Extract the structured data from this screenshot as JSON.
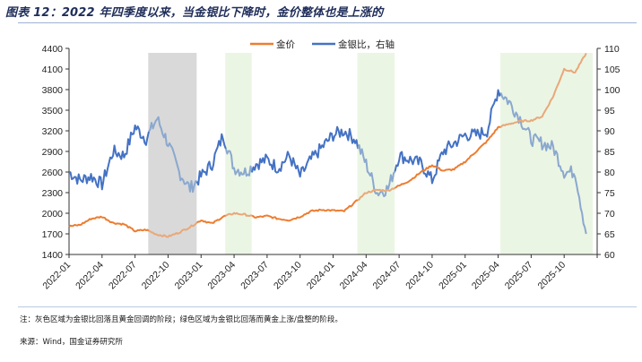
{
  "header": {
    "title": "图表 12：2022 年四季度以来，当金银比下降时，金价整体也是上涨的"
  },
  "footer": {
    "note": "注：灰色区域为金银比回落且黄金回调的阶段；绿色区域为金银比回落而黄金上涨/盘整的阶段。",
    "source": "来源：Wind，国金证券研究所"
  },
  "colors": {
    "gold": "#ed7d31",
    "gold_faded": "#e9a878",
    "ratio": "#4472c4",
    "ratio_faded": "#8aa8cf",
    "gray_band": "#d9d9d9",
    "green_band": "#ebf5e4"
  },
  "chart_data": {
    "type": "line",
    "title": "图表 12：2022 年四季度以来，当金银比下降时，金价整体也是上涨的",
    "xlabel": "",
    "ylabel": "",
    "y2label": "",
    "ylim": [
      1400,
      4400
    ],
    "y2lim": [
      60,
      110
    ],
    "yticks": [
      1400,
      1700,
      2000,
      2300,
      2600,
      2900,
      3200,
      3500,
      3800,
      4100,
      4400
    ],
    "y2ticks": [
      60,
      65,
      70,
      75,
      80,
      85,
      90,
      95,
      100,
      105,
      110
    ],
    "x_tick_labels": [
      "2022-01",
      "2022-04",
      "2022-07",
      "2022-10",
      "2023-01",
      "2023-04",
      "2023-07",
      "2023-10",
      "2024-01",
      "2024-04",
      "2024-07",
      "2024-10",
      "2025-01",
      "2025-04",
      "2025-07",
      "2025-10"
    ],
    "legend": [
      {
        "name": "金价",
        "axis": "left"
      },
      {
        "name": "金银比，右轴",
        "axis": "right"
      }
    ],
    "legend_position": "top",
    "grid": false,
    "shaded_regions": [
      {
        "color": "gray",
        "start": "2022-08",
        "end": "2022-12"
      },
      {
        "color": "green",
        "start": "2023-03",
        "end": "2023-05"
      },
      {
        "color": "green",
        "start": "2024-03",
        "end": "2024-06"
      },
      {
        "color": "green",
        "start": "2025-04",
        "end": "2025-12"
      }
    ],
    "x": [
      "2022-01",
      "2022-02",
      "2022-03",
      "2022-04",
      "2022-05",
      "2022-06",
      "2022-07",
      "2022-08",
      "2022-09",
      "2022-10",
      "2022-11",
      "2022-12",
      "2023-01",
      "2023-02",
      "2023-03",
      "2023-04",
      "2023-05",
      "2023-06",
      "2023-07",
      "2023-08",
      "2023-09",
      "2023-10",
      "2023-11",
      "2023-12",
      "2024-01",
      "2024-02",
      "2024-03",
      "2024-04",
      "2024-05",
      "2024-06",
      "2024-07",
      "2024-08",
      "2024-09",
      "2024-10",
      "2024-11",
      "2024-12",
      "2025-01",
      "2025-02",
      "2025-03",
      "2025-04",
      "2025-05",
      "2025-06",
      "2025-07",
      "2025-08",
      "2025-09",
      "2025-10",
      "2025-11",
      "2025-12"
    ],
    "series": [
      {
        "name": "金价",
        "axis": "left",
        "values": [
          1810,
          1830,
          1920,
          1950,
          1860,
          1840,
          1740,
          1760,
          1690,
          1660,
          1720,
          1800,
          1900,
          1850,
          1950,
          2000,
          1980,
          1940,
          1960,
          1920,
          1900,
          1950,
          2030,
          2050,
          2040,
          2030,
          2160,
          2300,
          2340,
          2330,
          2400,
          2480,
          2600,
          2700,
          2620,
          2640,
          2750,
          2900,
          3050,
          3250,
          3300,
          3340,
          3350,
          3410,
          3700,
          4100,
          4050,
          4330
        ]
      },
      {
        "name": "金银比，右轴",
        "axis": "right",
        "values": [
          80,
          78,
          79,
          77,
          85,
          84,
          91,
          88,
          93,
          87,
          80,
          76,
          79,
          82,
          89,
          81,
          80,
          82,
          83,
          81,
          84,
          79,
          83,
          86,
          89,
          90,
          88,
          82,
          75,
          76,
          84,
          83,
          82,
          78,
          85,
          87,
          89,
          89,
          90,
          100,
          97,
          93,
          88,
          87,
          86,
          80,
          80,
          65
        ]
      }
    ]
  }
}
